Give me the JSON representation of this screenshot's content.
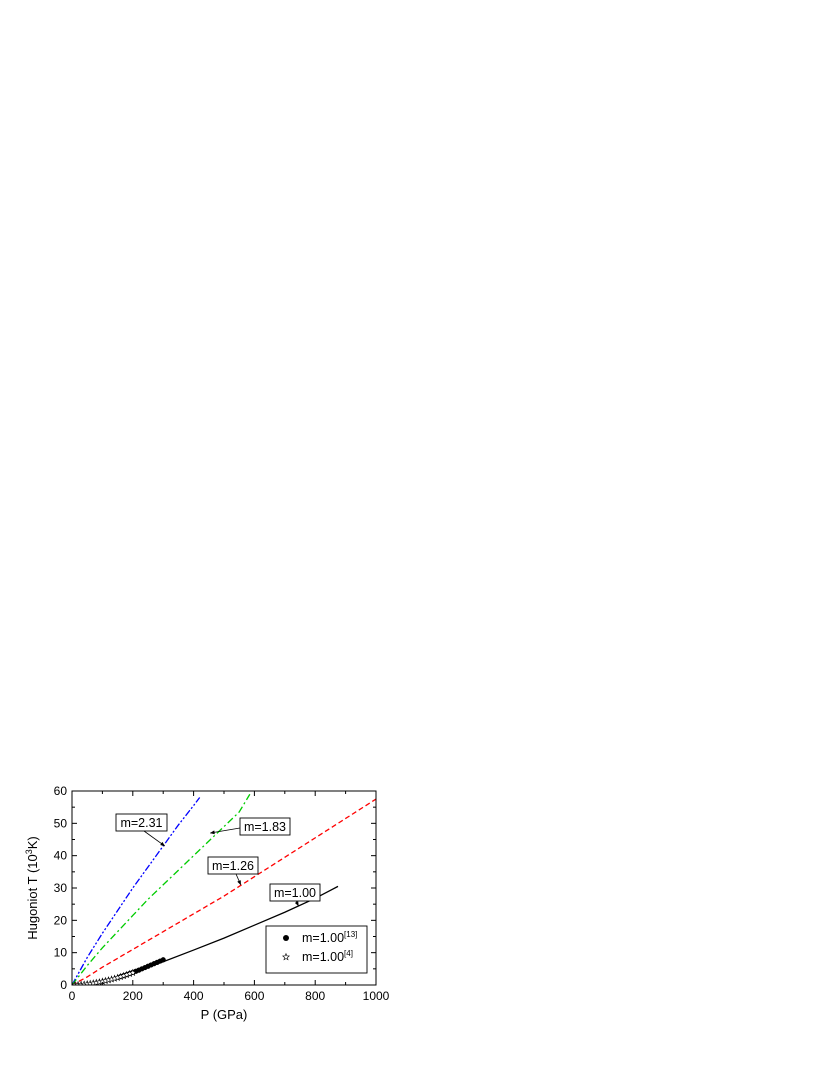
{
  "chart_data": {
    "type": "line",
    "xlabel": "P (GPa)",
    "ylabel_main": "Hugoniot  T  (10",
    "ylabel_sup": "3",
    "ylabel_end": "K)",
    "xlim": [
      0,
      1000
    ],
    "ylim": [
      0,
      60
    ],
    "xticks": [
      0,
      200,
      400,
      600,
      800,
      1000
    ],
    "yticks": [
      0,
      10,
      20,
      30,
      40,
      50,
      60
    ],
    "grid": false,
    "legend_position": "bottom-right",
    "series": [
      {
        "name": "m=2.31",
        "style": "dash-dot-dot",
        "color": "#0000ff",
        "x": [
          0,
          50,
          100,
          150,
          200,
          250,
          300,
          350,
          400,
          420
        ],
        "y": [
          0,
          8.5,
          16,
          23,
          30,
          36.5,
          43,
          49.5,
          55.5,
          58
        ]
      },
      {
        "name": "m=1.83",
        "style": "dash-dot",
        "color": "#00cc00",
        "x": [
          0,
          50,
          100,
          150,
          200,
          250,
          300,
          350,
          400,
          450,
          500,
          550,
          585
        ],
        "y": [
          0,
          6,
          11.5,
          16.5,
          21.5,
          26.5,
          31,
          35.5,
          40,
          44.5,
          49,
          53.5,
          59
        ]
      },
      {
        "name": "m=1.26",
        "style": "dashed",
        "color": "#ff0000",
        "x": [
          0,
          50,
          100,
          200,
          300,
          400,
          500,
          600,
          700,
          800,
          900,
          1000
        ],
        "y": [
          0,
          2.5,
          5.5,
          11,
          16.5,
          22,
          27.5,
          33.5,
          39.5,
          45.5,
          51.5,
          57.5
        ]
      },
      {
        "name": "m=1.00",
        "style": "solid",
        "color": "#000000",
        "x": [
          0,
          50,
          100,
          150,
          200,
          300,
          400,
          500,
          600,
          700,
          800,
          875
        ],
        "y": [
          0,
          0.4,
          1.2,
          2.4,
          3.8,
          7.2,
          10.8,
          14.5,
          18.5,
          22.5,
          26.8,
          30.5
        ]
      }
    ],
    "scatter": [
      {
        "name": "m=1.00",
        "name_sup": "[13]",
        "marker": "filled-circle",
        "x": [
          160,
          170,
          180,
          190,
          200,
          210,
          220,
          230,
          240,
          250,
          260,
          270,
          280,
          290,
          300
        ],
        "y": [
          2.6,
          2.9,
          3.2,
          3.55,
          3.9,
          4.25,
          4.6,
          5.0,
          5.4,
          5.8,
          6.2,
          6.6,
          7.0,
          7.4,
          7.8
        ]
      },
      {
        "name": "m=1.00",
        "name_sup": "[4]",
        "marker": "open-star",
        "x": [
          10,
          20,
          30,
          40,
          50,
          60,
          70,
          80,
          90,
          100,
          110,
          120,
          130,
          140,
          150,
          160,
          170,
          180,
          190,
          200
        ],
        "y": [
          0.02,
          0.06,
          0.12,
          0.2,
          0.3,
          0.42,
          0.56,
          0.72,
          0.9,
          1.1,
          1.3,
          1.52,
          1.76,
          2.0,
          2.26,
          2.54,
          2.84,
          3.15,
          3.47,
          3.8
        ]
      }
    ],
    "annotations": [
      {
        "text": "m=2.31",
        "arrow_to": [
          305,
          43
        ]
      },
      {
        "text": "m=1.83",
        "arrow_to": [
          455,
          47
        ]
      },
      {
        "text": "m=1.26",
        "arrow_to": [
          555,
          31
        ]
      },
      {
        "text": "m=1.00",
        "arrow_to": [
          745,
          24.5
        ]
      }
    ]
  }
}
